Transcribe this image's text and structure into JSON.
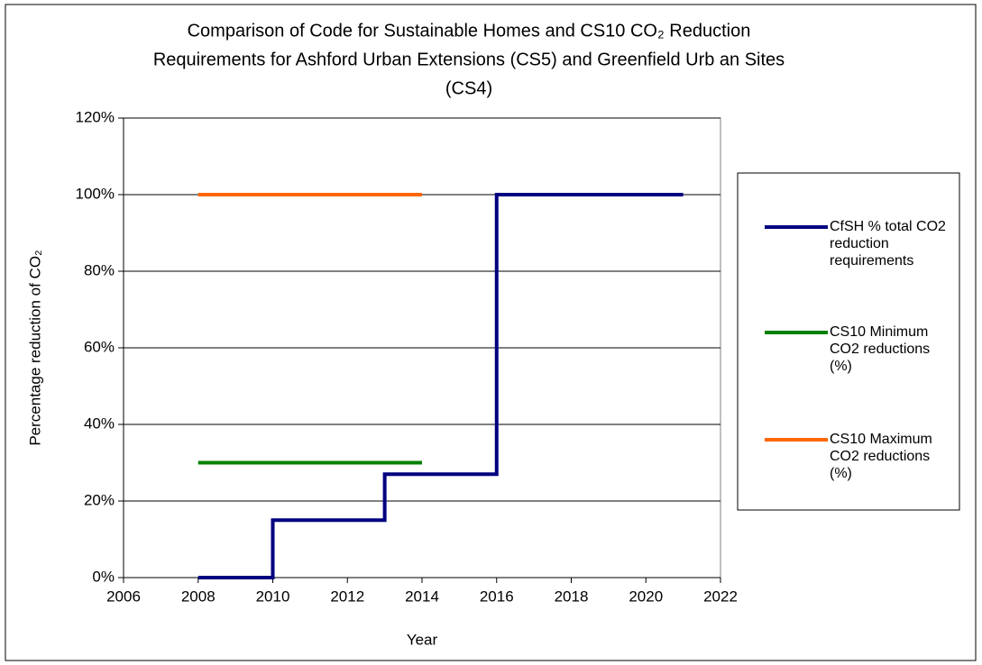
{
  "chart_data": {
    "type": "line",
    "title": [
      "Comparison of Code for Sustainable Homes and CS10 CO₂ Reduction",
      "Requirements for Ashford Urban Extensions (CS5) and Greenfield Urb an Sites",
      "(CS4)"
    ],
    "x_label": "Year",
    "y_label": "Percentage reduction of CO₂",
    "series": [
      {
        "name": "CfSH % total CO2 reduction requirements",
        "color": "#000080",
        "x": [
          2008,
          2010,
          2010,
          2013,
          2013,
          2016,
          2016,
          2021
        ],
        "values": [
          0,
          0,
          15,
          15,
          27,
          27,
          100,
          100
        ]
      },
      {
        "name": "CS10 Minimum CO2 reductions (%)",
        "color": "#008000",
        "x": [
          2008,
          2014
        ],
        "values": [
          30,
          30
        ]
      },
      {
        "name": "CS10 Maximum CO2 reductions (%)",
        "color": "#ff6600",
        "x": [
          2008,
          2014
        ],
        "values": [
          100,
          100
        ]
      }
    ],
    "xlim": [
      2006,
      2022
    ],
    "xticks": [
      2006,
      2008,
      2010,
      2012,
      2014,
      2016,
      2018,
      2020,
      2022
    ],
    "ylim": [
      0,
      120
    ],
    "yticks": [
      {
        "value": 0,
        "label": "0%"
      },
      {
        "value": 20,
        "label": "20%"
      },
      {
        "value": 40,
        "label": "40%"
      },
      {
        "value": 60,
        "label": "60%"
      },
      {
        "value": 80,
        "label": "80%"
      },
      {
        "value": 100,
        "label": "100%"
      },
      {
        "value": 120,
        "label": "120%"
      }
    ],
    "grid": true,
    "legend": "right"
  }
}
